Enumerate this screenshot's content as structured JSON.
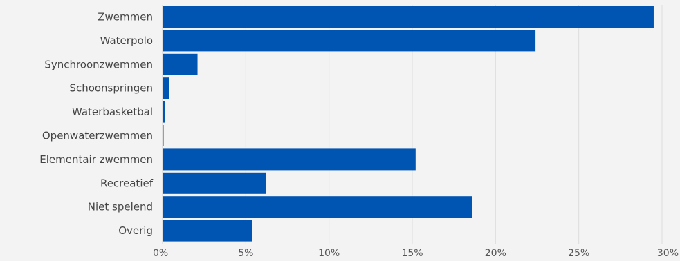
{
  "chart_data": {
    "type": "bar",
    "orientation": "horizontal",
    "categories": [
      "Zwemmen",
      "Waterpolo",
      "Synchroonzwemmen",
      "Schoonspringen",
      "Waterbasketbal",
      "Openwaterzwemmen",
      "Elementair zwemmen",
      "Recreatief",
      "Niet spelend",
      "Overig"
    ],
    "values": [
      29.5,
      22.4,
      2.1,
      0.4,
      0.15,
      0.05,
      15.2,
      6.2,
      18.6,
      5.4
    ],
    "xlim": [
      0,
      30
    ],
    "x_ticks": [
      0,
      5,
      10,
      15,
      20,
      25,
      30
    ],
    "x_tick_labels": [
      "0%",
      "5%",
      "10%",
      "15%",
      "20%",
      "25%",
      "30%"
    ],
    "grid": true,
    "bar_color": "#0055b3"
  }
}
